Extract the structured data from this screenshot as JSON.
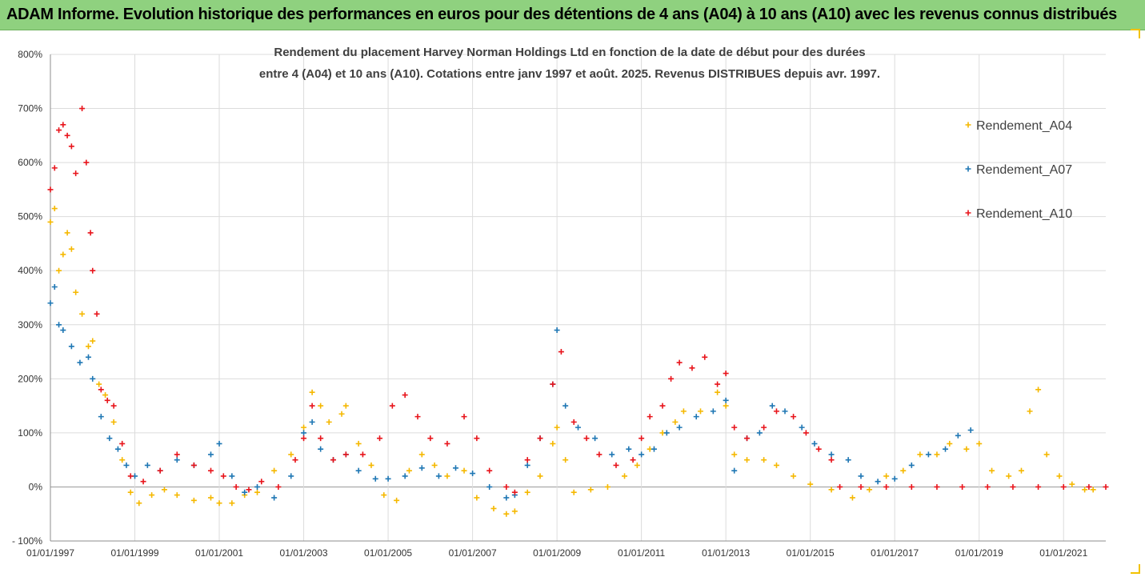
{
  "header": {
    "title": "ADAM Informe. Evolution historique des performances en euros pour des détentions de 4 ans (A04) à 10 ans (A10) avec les revenus connus distribués"
  },
  "chart_data": {
    "type": "scatter",
    "title_lines": [
      "Rendement du placement Harvey Norman Holdings Ltd en fonction de la date de début pour des durées",
      "entre 4 (A04) et 10 ans (A10). Cotations entre janv 1997 et août. 2025. Revenus DISTRIBUES depuis avr. 1997."
    ],
    "xlabel": "",
    "ylabel": "",
    "x_tick_labels": [
      "01/01/1997",
      "01/01/1999",
      "01/01/2001",
      "01/01/2003",
      "01/01/2005",
      "01/01/2007",
      "01/01/2009",
      "01/01/2011",
      "01/01/2013",
      "01/01/2015",
      "01/01/2017",
      "01/01/2019",
      "01/01/2021"
    ],
    "x_tick_years": [
      1997,
      1999,
      2001,
      2003,
      2005,
      2007,
      2009,
      2011,
      2013,
      2015,
      2017,
      2019,
      2021
    ],
    "xlim": [
      1997.0,
      2022.0
    ],
    "y_tick_labels": [
      "- 100%",
      "0%",
      "100%",
      "200%",
      "300%",
      "400%",
      "500%",
      "600%",
      "700%",
      "800%"
    ],
    "y_tick_values": [
      -100,
      0,
      100,
      200,
      300,
      400,
      500,
      600,
      700,
      800
    ],
    "ylim": [
      -100,
      800
    ],
    "grid": true,
    "legend_position": "top-right",
    "marker": "+",
    "series": [
      {
        "name": "Rendement_A04",
        "color": "#f5b800",
        "points": [
          [
            1997.0,
            490
          ],
          [
            1997.1,
            515
          ],
          [
            1997.2,
            400
          ],
          [
            1997.3,
            430
          ],
          [
            1997.4,
            470
          ],
          [
            1997.5,
            440
          ],
          [
            1997.6,
            360
          ],
          [
            1997.75,
            320
          ],
          [
            1997.9,
            260
          ],
          [
            1998.0,
            270
          ],
          [
            1998.15,
            190
          ],
          [
            1998.3,
            170
          ],
          [
            1998.5,
            120
          ],
          [
            1998.7,
            50
          ],
          [
            1998.9,
            -10
          ],
          [
            1999.1,
            -30
          ],
          [
            1999.4,
            -15
          ],
          [
            1999.7,
            -5
          ],
          [
            2000.0,
            -15
          ],
          [
            2000.4,
            -25
          ],
          [
            2000.8,
            -20
          ],
          [
            2001.0,
            -30
          ],
          [
            2001.3,
            -30
          ],
          [
            2001.6,
            -15
          ],
          [
            2001.9,
            -10
          ],
          [
            2002.3,
            30
          ],
          [
            2002.7,
            60
          ],
          [
            2003.0,
            110
          ],
          [
            2003.2,
            175
          ],
          [
            2003.4,
            150
          ],
          [
            2003.6,
            120
          ],
          [
            2003.9,
            135
          ],
          [
            2004.0,
            150
          ],
          [
            2004.3,
            80
          ],
          [
            2004.6,
            40
          ],
          [
            2004.9,
            -15
          ],
          [
            2005.2,
            -25
          ],
          [
            2005.5,
            30
          ],
          [
            2005.8,
            60
          ],
          [
            2006.1,
            40
          ],
          [
            2006.4,
            20
          ],
          [
            2006.8,
            30
          ],
          [
            2007.1,
            -20
          ],
          [
            2007.5,
            -40
          ],
          [
            2007.8,
            -50
          ],
          [
            2008.0,
            -45
          ],
          [
            2008.3,
            -10
          ],
          [
            2008.6,
            20
          ],
          [
            2008.9,
            80
          ],
          [
            2009.0,
            110
          ],
          [
            2009.2,
            50
          ],
          [
            2009.4,
            -10
          ],
          [
            2009.8,
            -5
          ],
          [
            2010.2,
            0
          ],
          [
            2010.6,
            20
          ],
          [
            2010.9,
            40
          ],
          [
            2011.2,
            70
          ],
          [
            2011.5,
            100
          ],
          [
            2011.8,
            120
          ],
          [
            2012.0,
            140
          ],
          [
            2012.4,
            140
          ],
          [
            2012.8,
            175
          ],
          [
            2013.0,
            150
          ],
          [
            2013.2,
            60
          ],
          [
            2013.5,
            50
          ],
          [
            2013.9,
            50
          ],
          [
            2014.2,
            40
          ],
          [
            2014.6,
            20
          ],
          [
            2015.0,
            5
          ],
          [
            2015.5,
            -5
          ],
          [
            2016.0,
            -20
          ],
          [
            2016.4,
            -5
          ],
          [
            2016.8,
            20
          ],
          [
            2017.2,
            30
          ],
          [
            2017.6,
            60
          ],
          [
            2018.0,
            60
          ],
          [
            2018.3,
            80
          ],
          [
            2018.7,
            70
          ],
          [
            2019.0,
            80
          ],
          [
            2019.3,
            30
          ],
          [
            2019.7,
            20
          ],
          [
            2020.0,
            30
          ],
          [
            2020.2,
            140
          ],
          [
            2020.4,
            180
          ],
          [
            2020.6,
            60
          ],
          [
            2020.9,
            20
          ],
          [
            2021.2,
            5
          ],
          [
            2021.5,
            -5
          ],
          [
            2021.7,
            -5
          ]
        ]
      },
      {
        "name": "Rendement_A07",
        "color": "#1f77b4",
        "points": [
          [
            1997.0,
            340
          ],
          [
            1997.1,
            370
          ],
          [
            1997.2,
            300
          ],
          [
            1997.3,
            290
          ],
          [
            1997.5,
            260
          ],
          [
            1997.7,
            230
          ],
          [
            1997.9,
            240
          ],
          [
            1998.0,
            200
          ],
          [
            1998.2,
            130
          ],
          [
            1998.4,
            90
          ],
          [
            1998.6,
            70
          ],
          [
            1998.8,
            40
          ],
          [
            1999.0,
            20
          ],
          [
            1999.3,
            40
          ],
          [
            1999.6,
            30
          ],
          [
            2000.0,
            50
          ],
          [
            2000.4,
            40
          ],
          [
            2000.8,
            60
          ],
          [
            2001.0,
            80
          ],
          [
            2001.3,
            20
          ],
          [
            2001.6,
            -10
          ],
          [
            2001.9,
            0
          ],
          [
            2002.3,
            -20
          ],
          [
            2002.7,
            20
          ],
          [
            2003.0,
            100
          ],
          [
            2003.2,
            120
          ],
          [
            2003.4,
            70
          ],
          [
            2003.7,
            50
          ],
          [
            2004.0,
            60
          ],
          [
            2004.3,
            30
          ],
          [
            2004.7,
            15
          ],
          [
            2005.0,
            15
          ],
          [
            2005.4,
            20
          ],
          [
            2005.8,
            35
          ],
          [
            2006.2,
            20
          ],
          [
            2006.6,
            35
          ],
          [
            2007.0,
            25
          ],
          [
            2007.4,
            0
          ],
          [
            2007.8,
            -20
          ],
          [
            2008.0,
            -15
          ],
          [
            2008.3,
            40
          ],
          [
            2008.6,
            90
          ],
          [
            2008.9,
            190
          ],
          [
            2009.0,
            290
          ],
          [
            2009.2,
            150
          ],
          [
            2009.5,
            110
          ],
          [
            2009.9,
            90
          ],
          [
            2010.3,
            60
          ],
          [
            2010.7,
            70
          ],
          [
            2011.0,
            60
          ],
          [
            2011.3,
            70
          ],
          [
            2011.6,
            100
          ],
          [
            2011.9,
            110
          ],
          [
            2012.3,
            130
          ],
          [
            2012.7,
            140
          ],
          [
            2013.0,
            160
          ],
          [
            2013.2,
            30
          ],
          [
            2013.5,
            90
          ],
          [
            2013.8,
            100
          ],
          [
            2014.1,
            150
          ],
          [
            2014.4,
            140
          ],
          [
            2014.8,
            110
          ],
          [
            2015.1,
            80
          ],
          [
            2015.5,
            60
          ],
          [
            2015.9,
            50
          ],
          [
            2016.2,
            20
          ],
          [
            2016.6,
            10
          ],
          [
            2017.0,
            15
          ],
          [
            2017.4,
            40
          ],
          [
            2017.8,
            60
          ],
          [
            2018.2,
            70
          ],
          [
            2018.5,
            95
          ],
          [
            2018.8,
            105
          ]
        ]
      },
      {
        "name": "Rendement_A10",
        "color": "#e8141b",
        "points": [
          [
            1997.0,
            550
          ],
          [
            1997.1,
            590
          ],
          [
            1997.2,
            660
          ],
          [
            1997.3,
            670
          ],
          [
            1997.4,
            650
          ],
          [
            1997.5,
            630
          ],
          [
            1997.6,
            580
          ],
          [
            1997.75,
            700
          ],
          [
            1997.85,
            600
          ],
          [
            1997.95,
            470
          ],
          [
            1998.0,
            400
          ],
          [
            1998.1,
            320
          ],
          [
            1998.2,
            180
          ],
          [
            1998.35,
            160
          ],
          [
            1998.5,
            150
          ],
          [
            1998.7,
            80
          ],
          [
            1998.9,
            20
          ],
          [
            1999.2,
            10
          ],
          [
            1999.6,
            30
          ],
          [
            2000.0,
            60
          ],
          [
            2000.4,
            40
          ],
          [
            2000.8,
            30
          ],
          [
            2001.1,
            20
          ],
          [
            2001.4,
            0
          ],
          [
            2001.7,
            -5
          ],
          [
            2002.0,
            10
          ],
          [
            2002.4,
            0
          ],
          [
            2002.8,
            50
          ],
          [
            2003.0,
            90
          ],
          [
            2003.2,
            150
          ],
          [
            2003.4,
            90
          ],
          [
            2003.7,
            50
          ],
          [
            2004.0,
            60
          ],
          [
            2004.4,
            60
          ],
          [
            2004.8,
            90
          ],
          [
            2005.1,
            150
          ],
          [
            2005.4,
            170
          ],
          [
            2005.7,
            130
          ],
          [
            2006.0,
            90
          ],
          [
            2006.4,
            80
          ],
          [
            2006.8,
            130
          ],
          [
            2007.1,
            90
          ],
          [
            2007.4,
            30
          ],
          [
            2007.8,
            0
          ],
          [
            2008.0,
            -10
          ],
          [
            2008.3,
            50
          ],
          [
            2008.6,
            90
          ],
          [
            2008.9,
            190
          ],
          [
            2009.1,
            250
          ],
          [
            2009.4,
            120
          ],
          [
            2009.7,
            90
          ],
          [
            2010.0,
            60
          ],
          [
            2010.4,
            40
          ],
          [
            2010.8,
            50
          ],
          [
            2011.0,
            90
          ],
          [
            2011.2,
            130
          ],
          [
            2011.5,
            150
          ],
          [
            2011.7,
            200
          ],
          [
            2011.9,
            230
          ],
          [
            2012.2,
            220
          ],
          [
            2012.5,
            240
          ],
          [
            2012.8,
            190
          ],
          [
            2013.0,
            210
          ],
          [
            2013.2,
            110
          ],
          [
            2013.5,
            90
          ],
          [
            2013.9,
            110
          ],
          [
            2014.2,
            140
          ],
          [
            2014.6,
            130
          ],
          [
            2014.9,
            100
          ],
          [
            2015.2,
            70
          ],
          [
            2015.5,
            50
          ],
          [
            2015.7,
            0
          ],
          [
            2016.2,
            0
          ],
          [
            2016.8,
            0
          ],
          [
            2017.4,
            0
          ],
          [
            2018.0,
            0
          ],
          [
            2018.6,
            0
          ],
          [
            2019.2,
            0
          ],
          [
            2019.8,
            0
          ],
          [
            2020.4,
            0
          ],
          [
            2021.0,
            0
          ],
          [
            2021.6,
            0
          ],
          [
            2022.0,
            0
          ]
        ]
      }
    ]
  }
}
